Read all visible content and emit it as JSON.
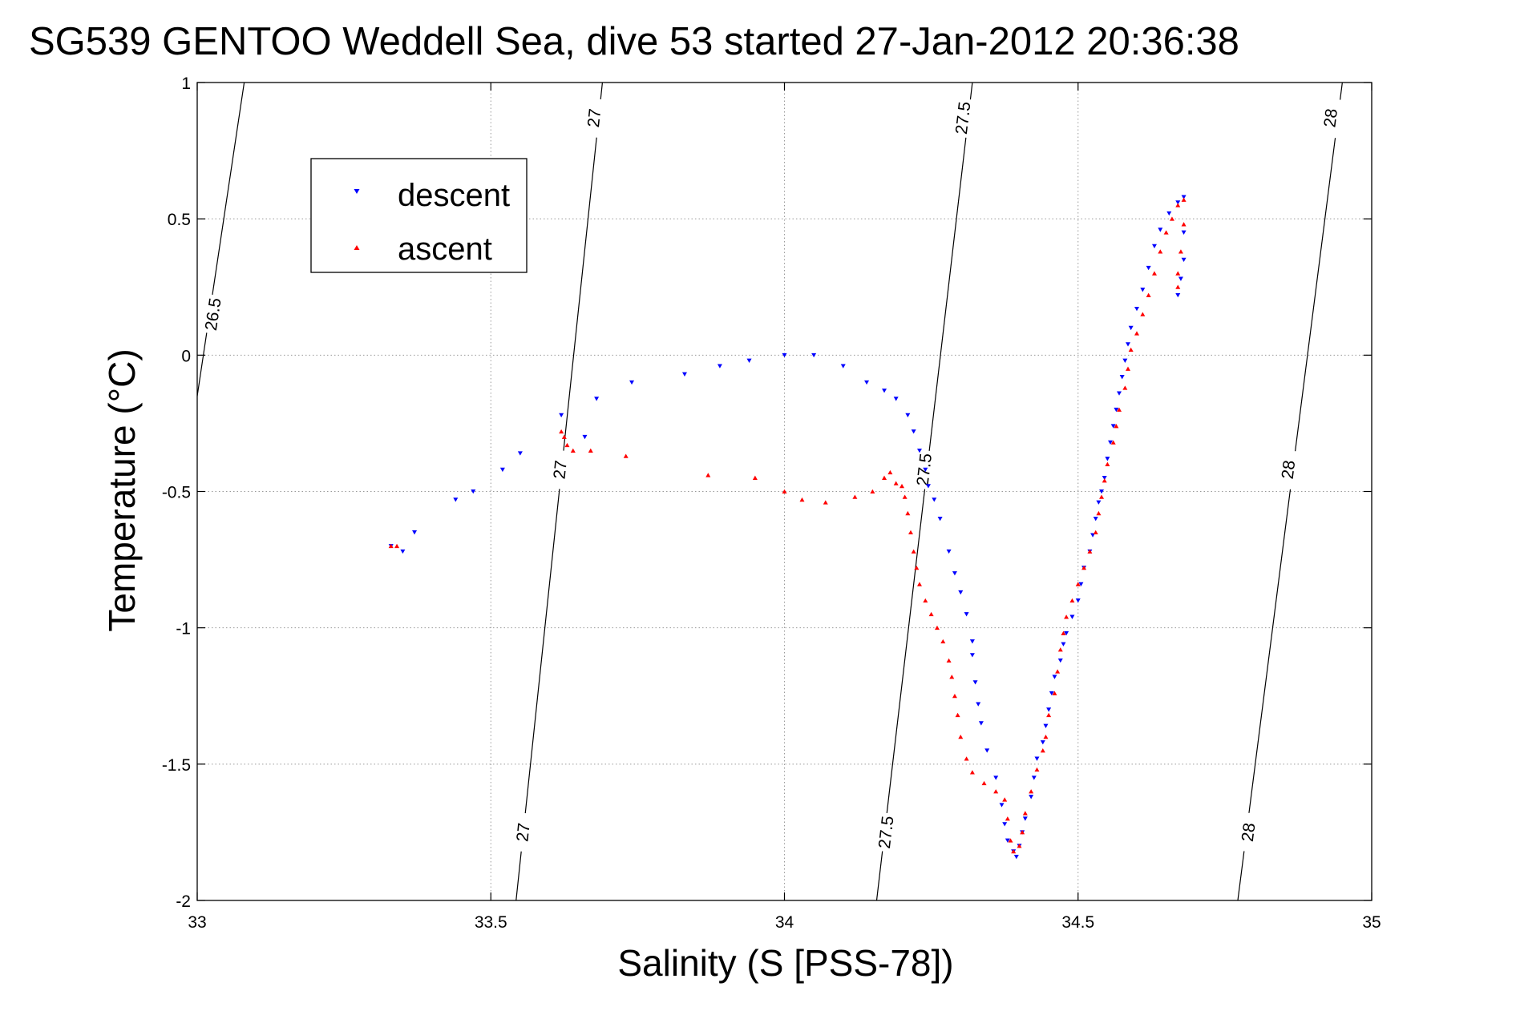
{
  "chart_data": {
    "type": "scatter",
    "title": "SG539 GENTOO Weddell Sea, dive 53 started 27-Jan-2012 20:36:38",
    "xlabel": "Salinity (S [PSS-78])",
    "ylabel": "Temperature (°C)",
    "xlim": [
      33,
      35
    ],
    "ylim": [
      -2,
      1
    ],
    "grid": true,
    "legend_position": "top-left",
    "x_ticks": [
      {
        "value": 33,
        "label": "33"
      },
      {
        "value": 33.5,
        "label": "33.5"
      },
      {
        "value": 34,
        "label": "34"
      },
      {
        "value": 34.5,
        "label": "34.5"
      },
      {
        "value": 35,
        "label": "35"
      }
    ],
    "y_ticks": [
      {
        "value": 1,
        "label": "1"
      },
      {
        "value": 0.5,
        "label": "0.5"
      },
      {
        "value": 0,
        "label": "0"
      },
      {
        "value": -0.5,
        "label": "-0.5"
      },
      {
        "value": -1,
        "label": "-1"
      },
      {
        "value": -1.5,
        "label": "-1.5"
      },
      {
        "value": -2,
        "label": "-2"
      }
    ],
    "density_contours": [
      {
        "label": "26.5",
        "points": [
          [
            33.0,
            -0.15
          ],
          [
            33.08,
            1.0
          ]
        ],
        "label_at": [
          [
            33.027,
            0.15
          ]
        ]
      },
      {
        "label": "27",
        "points": [
          [
            33.543,
            -2.0
          ],
          [
            33.69,
            1.0
          ]
        ],
        "label_at": [
          [
            33.555,
            -1.75
          ],
          [
            33.618,
            -0.42
          ],
          [
            33.676,
            0.87
          ]
        ]
      },
      {
        "label": "27.5",
        "points": [
          [
            34.157,
            -2.0
          ],
          [
            34.32,
            1.0
          ]
        ],
        "label_at": [
          [
            34.173,
            -1.75
          ],
          [
            34.238,
            -0.42
          ],
          [
            34.304,
            0.87
          ]
        ]
      },
      {
        "label": "28",
        "points": [
          [
            34.772,
            -2.0
          ],
          [
            34.95,
            1.0
          ]
        ],
        "label_at": [
          [
            34.79,
            -1.75
          ],
          [
            34.858,
            -0.42
          ],
          [
            34.93,
            0.87
          ]
        ]
      }
    ],
    "series": [
      {
        "name": "descent",
        "color": "#0000ff",
        "marker": "triangle-down",
        "points": [
          [
            33.33,
            -0.7
          ],
          [
            33.35,
            -0.72
          ],
          [
            33.37,
            -0.65
          ],
          [
            33.44,
            -0.53
          ],
          [
            33.47,
            -0.5
          ],
          [
            33.52,
            -0.42
          ],
          [
            33.55,
            -0.36
          ],
          [
            33.62,
            -0.22
          ],
          [
            33.66,
            -0.3
          ],
          [
            33.68,
            -0.16
          ],
          [
            33.74,
            -0.1
          ],
          [
            33.83,
            -0.07
          ],
          [
            33.89,
            -0.04
          ],
          [
            33.94,
            -0.02
          ],
          [
            34.0,
            0.0
          ],
          [
            34.05,
            0.0
          ],
          [
            34.1,
            -0.04
          ],
          [
            34.14,
            -0.1
          ],
          [
            34.17,
            -0.13
          ],
          [
            34.19,
            -0.16
          ],
          [
            34.21,
            -0.22
          ],
          [
            34.22,
            -0.28
          ],
          [
            34.23,
            -0.35
          ],
          [
            34.24,
            -0.42
          ],
          [
            34.245,
            -0.48
          ],
          [
            34.255,
            -0.53
          ],
          [
            34.265,
            -0.6
          ],
          [
            34.28,
            -0.72
          ],
          [
            34.29,
            -0.8
          ],
          [
            34.3,
            -0.87
          ],
          [
            34.31,
            -0.95
          ],
          [
            34.32,
            -1.05
          ],
          [
            34.32,
            -1.1
          ],
          [
            34.325,
            -1.2
          ],
          [
            34.33,
            -1.28
          ],
          [
            34.335,
            -1.35
          ],
          [
            34.345,
            -1.45
          ],
          [
            34.36,
            -1.55
          ],
          [
            34.37,
            -1.65
          ],
          [
            34.375,
            -1.72
          ],
          [
            34.38,
            -1.78
          ],
          [
            34.39,
            -1.82
          ],
          [
            34.395,
            -1.84
          ],
          [
            34.4,
            -1.8
          ],
          [
            34.405,
            -1.75
          ],
          [
            34.41,
            -1.7
          ],
          [
            34.42,
            -1.62
          ],
          [
            34.425,
            -1.55
          ],
          [
            34.43,
            -1.48
          ],
          [
            34.44,
            -1.42
          ],
          [
            34.445,
            -1.36
          ],
          [
            34.45,
            -1.3
          ],
          [
            34.455,
            -1.24
          ],
          [
            34.46,
            -1.18
          ],
          [
            34.47,
            -1.12
          ],
          [
            34.475,
            -1.06
          ],
          [
            34.48,
            -1.02
          ],
          [
            34.49,
            -0.96
          ],
          [
            34.5,
            -0.9
          ],
          [
            34.505,
            -0.84
          ],
          [
            34.51,
            -0.78
          ],
          [
            34.52,
            -0.72
          ],
          [
            34.525,
            -0.66
          ],
          [
            34.53,
            -0.6
          ],
          [
            34.535,
            -0.54
          ],
          [
            34.54,
            -0.5
          ],
          [
            34.545,
            -0.45
          ],
          [
            34.55,
            -0.38
          ],
          [
            34.555,
            -0.32
          ],
          [
            34.56,
            -0.26
          ],
          [
            34.565,
            -0.2
          ],
          [
            34.57,
            -0.14
          ],
          [
            34.575,
            -0.08
          ],
          [
            34.58,
            -0.02
          ],
          [
            34.585,
            0.04
          ],
          [
            34.59,
            0.1
          ],
          [
            34.6,
            0.17
          ],
          [
            34.61,
            0.24
          ],
          [
            34.62,
            0.32
          ],
          [
            34.63,
            0.4
          ],
          [
            34.64,
            0.46
          ],
          [
            34.655,
            0.52
          ],
          [
            34.67,
            0.56
          ],
          [
            34.68,
            0.58
          ],
          [
            34.68,
            0.45
          ],
          [
            34.68,
            0.35
          ],
          [
            34.675,
            0.28
          ],
          [
            34.67,
            0.22
          ]
        ]
      },
      {
        "name": "ascent",
        "color": "#ff0000",
        "marker": "triangle-up",
        "points": [
          [
            33.33,
            -0.7
          ],
          [
            33.34,
            -0.7
          ],
          [
            33.62,
            -0.28
          ],
          [
            33.625,
            -0.3
          ],
          [
            33.63,
            -0.33
          ],
          [
            33.64,
            -0.35
          ],
          [
            33.67,
            -0.35
          ],
          [
            33.73,
            -0.37
          ],
          [
            33.87,
            -0.44
          ],
          [
            33.95,
            -0.45
          ],
          [
            34.0,
            -0.5
          ],
          [
            34.03,
            -0.53
          ],
          [
            34.07,
            -0.54
          ],
          [
            34.12,
            -0.52
          ],
          [
            34.15,
            -0.5
          ],
          [
            34.17,
            -0.45
          ],
          [
            34.18,
            -0.43
          ],
          [
            34.19,
            -0.47
          ],
          [
            34.2,
            -0.48
          ],
          [
            34.205,
            -0.52
          ],
          [
            34.21,
            -0.58
          ],
          [
            34.215,
            -0.65
          ],
          [
            34.22,
            -0.72
          ],
          [
            34.225,
            -0.78
          ],
          [
            34.23,
            -0.84
          ],
          [
            34.24,
            -0.9
          ],
          [
            34.25,
            -0.95
          ],
          [
            34.26,
            -1.0
          ],
          [
            34.27,
            -1.05
          ],
          [
            34.28,
            -1.12
          ],
          [
            34.285,
            -1.18
          ],
          [
            34.29,
            -1.25
          ],
          [
            34.295,
            -1.32
          ],
          [
            34.3,
            -1.4
          ],
          [
            34.31,
            -1.48
          ],
          [
            34.32,
            -1.53
          ],
          [
            34.34,
            -1.57
          ],
          [
            34.36,
            -1.6
          ],
          [
            34.375,
            -1.63
          ],
          [
            34.38,
            -1.7
          ],
          [
            34.385,
            -1.78
          ],
          [
            34.39,
            -1.82
          ],
          [
            34.4,
            -1.8
          ],
          [
            34.405,
            -1.75
          ],
          [
            34.41,
            -1.68
          ],
          [
            34.42,
            -1.6
          ],
          [
            34.43,
            -1.52
          ],
          [
            34.44,
            -1.45
          ],
          [
            34.445,
            -1.4
          ],
          [
            34.45,
            -1.32
          ],
          [
            34.46,
            -1.24
          ],
          [
            34.465,
            -1.16
          ],
          [
            34.47,
            -1.08
          ],
          [
            34.475,
            -1.02
          ],
          [
            34.48,
            -0.96
          ],
          [
            34.49,
            -0.9
          ],
          [
            34.5,
            -0.84
          ],
          [
            34.51,
            -0.78
          ],
          [
            34.52,
            -0.72
          ],
          [
            34.53,
            -0.65
          ],
          [
            34.535,
            -0.58
          ],
          [
            34.54,
            -0.52
          ],
          [
            34.545,
            -0.46
          ],
          [
            34.55,
            -0.4
          ],
          [
            34.56,
            -0.32
          ],
          [
            34.565,
            -0.26
          ],
          [
            34.57,
            -0.2
          ],
          [
            34.58,
            -0.12
          ],
          [
            34.585,
            -0.05
          ],
          [
            34.59,
            0.02
          ],
          [
            34.6,
            0.08
          ],
          [
            34.61,
            0.15
          ],
          [
            34.62,
            0.22
          ],
          [
            34.63,
            0.3
          ],
          [
            34.64,
            0.38
          ],
          [
            34.65,
            0.45
          ],
          [
            34.66,
            0.5
          ],
          [
            34.67,
            0.55
          ],
          [
            34.68,
            0.57
          ],
          [
            34.68,
            0.48
          ],
          [
            34.675,
            0.38
          ],
          [
            34.67,
            0.3
          ],
          [
            34.67,
            0.25
          ]
        ]
      }
    ]
  }
}
